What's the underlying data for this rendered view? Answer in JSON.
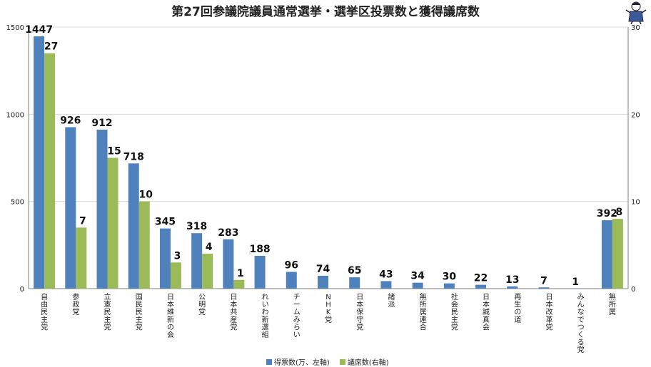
{
  "title": "第27回参議院議員通常選挙・選挙区投票数と獲得議席数",
  "colors": {
    "votes": "#4F81BD",
    "seats": "#9BBB59",
    "grid": "#d9d9d9",
    "axis": "#7f7f7f"
  },
  "legend": {
    "votes_label": "得票数(万、左軸)",
    "seats_label": "議席数(右軸)"
  },
  "chart_data": {
    "type": "bar",
    "title": "第27回参議院議員通常選挙・選挙区投票数と獲得議席数",
    "categories": [
      "自由民主党",
      "参政党",
      "立憲民主党",
      "国民民主党",
      "日本維新の会",
      "公明党",
      "日本共産党",
      "れいわ新選組",
      "チームみらい",
      "NHK党",
      "日本保守党",
      "諸派",
      "無所属連合",
      "社会民主党",
      "日本誠真会",
      "再生の道",
      "日本改革党",
      "みんなでつくる党",
      "無所属"
    ],
    "series": [
      {
        "name": "得票数(万、左軸)",
        "axis": "left",
        "values": [
          1447,
          926,
          912,
          718,
          345,
          318,
          283,
          188,
          96,
          74,
          65,
          43,
          34,
          30,
          22,
          13,
          7,
          1,
          392
        ]
      },
      {
        "name": "議席数(右軸)",
        "axis": "right",
        "values": [
          27,
          7,
          15,
          10,
          3,
          4,
          1,
          null,
          null,
          null,
          null,
          null,
          null,
          null,
          null,
          null,
          null,
          null,
          8
        ]
      }
    ],
    "y_left": {
      "lim": [
        0,
        1500
      ],
      "ticks": [
        "0",
        "500",
        "1000",
        "1500"
      ]
    },
    "y_right": {
      "lim": [
        0,
        30
      ],
      "ticks": [
        "0",
        "10",
        "20",
        "30"
      ]
    },
    "grid": true,
    "legend_position": "bottom"
  }
}
